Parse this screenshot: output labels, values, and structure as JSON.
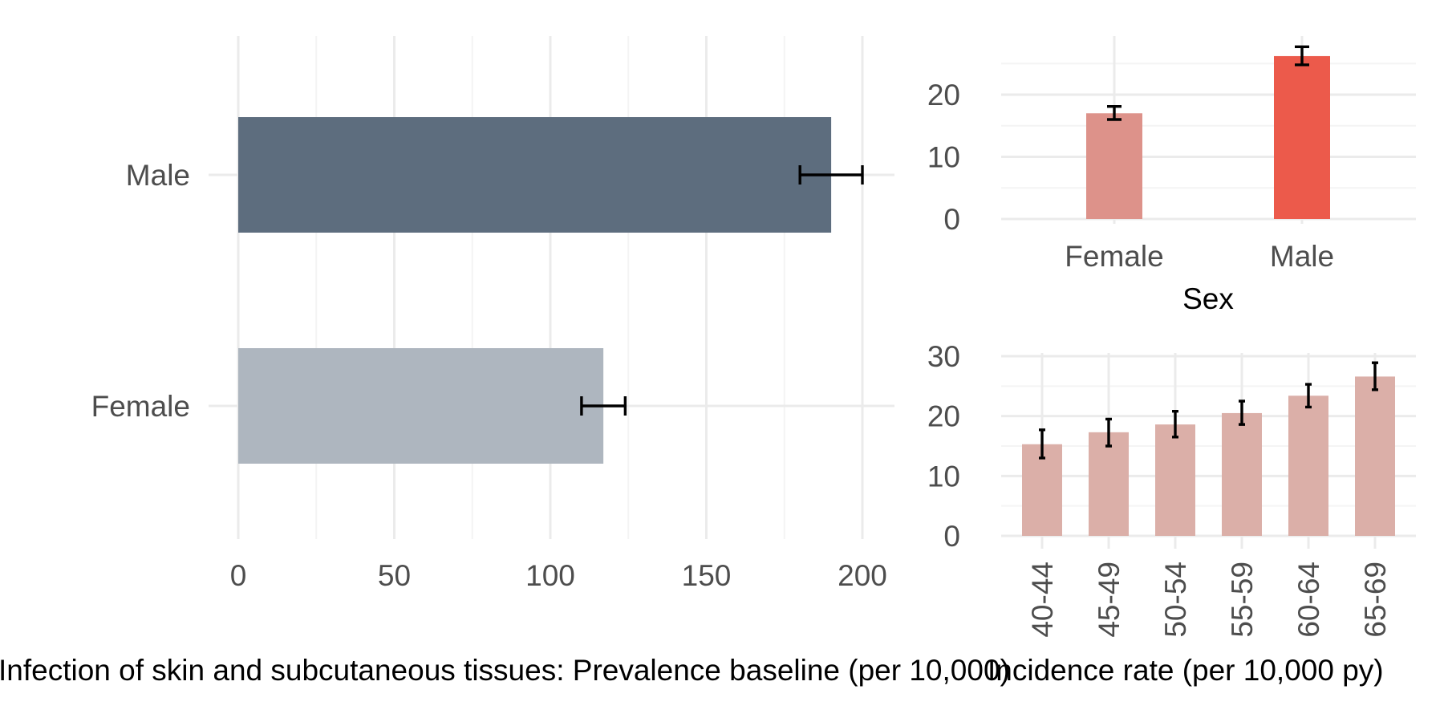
{
  "colors": {
    "male_prevalence": "#5d6d7e",
    "female_prevalence": "#aeb6bf",
    "female_incidence": "#dd928a",
    "male_incidence": "#ec5a4b",
    "age_incidence": "#dbafa8"
  },
  "chart_data": [
    {
      "type": "bar",
      "orientation": "horizontal",
      "categories": [
        "Female",
        "Male"
      ],
      "values": [
        117,
        190
      ],
      "error_low": [
        110,
        180
      ],
      "error_high": [
        124,
        200
      ],
      "xlabel": "Infection of skin and subcutaneous tissues: Prevalence baseline (per 10,000)",
      "ylabel": "",
      "xlim": [
        0,
        210
      ],
      "x_ticks": [
        "0",
        "50",
        "100",
        "150",
        "200"
      ],
      "grid": true
    },
    {
      "type": "bar",
      "categories": [
        "Female",
        "Male"
      ],
      "values": [
        17,
        26.2
      ],
      "error_low": [
        16.0,
        24.8
      ],
      "error_high": [
        18.1,
        27.7
      ],
      "xlabel": "Sex",
      "ylabel": "",
      "ylim": [
        0,
        28.5
      ],
      "y_ticks": [
        "0",
        "10",
        "20"
      ],
      "grid": true
    },
    {
      "type": "bar",
      "categories": [
        "40-44",
        "45-49",
        "50-54",
        "55-59",
        "60-64",
        "65-69"
      ],
      "values": [
        15.3,
        17.3,
        18.6,
        20.5,
        23.4,
        26.6
      ],
      "error_low": [
        13.0,
        15.0,
        16.5,
        18.6,
        21.5,
        24.4
      ],
      "error_high": [
        17.7,
        19.5,
        20.8,
        22.5,
        25.3,
        28.9
      ],
      "xlabel": "Incidence rate (per 10,000 py)",
      "ylabel": "",
      "ylim": [
        0,
        31
      ],
      "y_ticks": [
        "0",
        "10",
        "20",
        "30"
      ],
      "grid": true
    }
  ]
}
